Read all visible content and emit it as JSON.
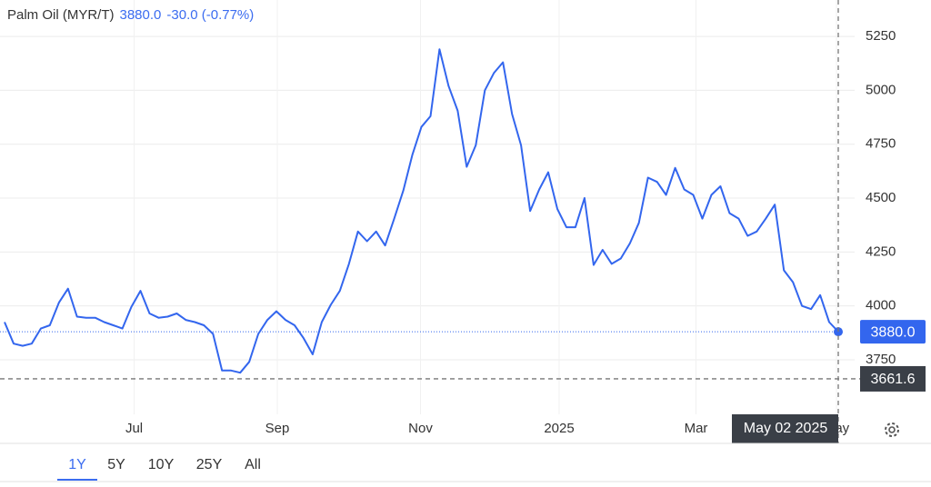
{
  "chart_data": {
    "type": "line",
    "series": [
      {
        "name": "Palm Oil (MYR/T)",
        "color": "#3366ee",
        "values": [
          3925,
          3825,
          3815,
          3825,
          3895,
          3910,
          4015,
          4080,
          3950,
          3945,
          3945,
          3925,
          3910,
          3895,
          3995,
          4070,
          3965,
          3945,
          3950,
          3965,
          3935,
          3925,
          3910,
          3870,
          3700,
          3700,
          3690,
          3740,
          3870,
          3935,
          3975,
          3935,
          3910,
          3850,
          3775,
          3925,
          4005,
          4070,
          4195,
          4345,
          4300,
          4345,
          4280,
          4405,
          4535,
          4700,
          4830,
          4880,
          5190,
          5020,
          4905,
          4645,
          4745,
          5000,
          5080,
          5130,
          4890,
          4745,
          4440,
          4540,
          4620,
          4450,
          4365,
          4365,
          4500,
          4190,
          4260,
          4195,
          4220,
          4290,
          4385,
          4595,
          4575,
          4515,
          4640,
          4540,
          4515,
          4405,
          4515,
          4555,
          4430,
          4405,
          4325,
          4345,
          4405,
          4470,
          4165,
          4110,
          4000,
          3985,
          4050,
          3925,
          3880
        ],
        "value_labels": [
          null,
          null,
          null,
          null,
          null,
          null,
          null,
          null,
          null,
          null,
          null,
          null,
          null,
          null,
          null,
          null,
          null,
          null,
          null,
          null,
          null,
          null,
          null,
          null,
          null,
          null,
          null,
          null,
          null,
          null,
          null,
          null,
          null,
          null,
          null,
          null,
          null,
          null,
          null,
          null,
          null,
          null,
          null,
          null,
          null,
          null,
          null,
          null,
          null,
          null,
          null,
          null,
          null,
          null,
          null,
          null,
          null,
          null,
          null,
          null,
          null,
          null,
          null,
          null,
          null,
          null,
          null,
          null,
          null,
          null,
          null,
          null,
          null,
          null,
          null,
          null,
          null,
          null,
          null,
          null,
          null,
          null,
          null,
          null,
          null,
          null,
          null,
          null,
          null,
          null,
          null,
          null,
          "3880.0"
        ]
      }
    ],
    "change": "-30.0 (-0.77%)",
    "categories": [
      null,
      null,
      null,
      null,
      null,
      null,
      null,
      null,
      null,
      null,
      null,
      null,
      null,
      null,
      null,
      null,
      null,
      null,
      null,
      null,
      null,
      null,
      null,
      null,
      null,
      null,
      null,
      null,
      null,
      null,
      null,
      null,
      null,
      null,
      null,
      null,
      null,
      null,
      null,
      null,
      null,
      null,
      null,
      null,
      null,
      null,
      null,
      null,
      null,
      null,
      null,
      null,
      null,
      null,
      null,
      null,
      null,
      null,
      null,
      null,
      null,
      null,
      null,
      null,
      null,
      null,
      null,
      null,
      null,
      null,
      null,
      null,
      null,
      null,
      null,
      null,
      null,
      null,
      null,
      null,
      null,
      null,
      null,
      null,
      null,
      null,
      null,
      null,
      null,
      null,
      null,
      null,
      "May 02 2025"
    ],
    "xticks": [
      {
        "value": 14.3,
        "label": "Jul"
      },
      {
        "value": 30.1,
        "label": "Sep"
      },
      {
        "value": 45.9,
        "label": "Nov"
      },
      {
        "value": 61.2,
        "label": "2025"
      },
      {
        "value": 76.3,
        "label": "Mar"
      },
      {
        "value": 91.8,
        "label": "May"
      }
    ],
    "ylim": [
      3497,
      5419
    ],
    "yticks": [
      3750,
      4000,
      4250,
      4500,
      4750,
      5000,
      5250
    ],
    "crosshair_y": {
      "value": 3661.6,
      "label": "3661.6"
    },
    "grid": true,
    "range_options": [
      "1Y",
      "5Y",
      "10Y",
      "25Y",
      "All"
    ],
    "selected_range": "1Y"
  }
}
